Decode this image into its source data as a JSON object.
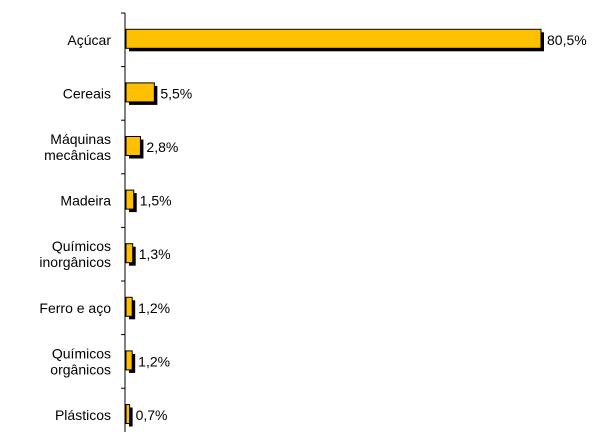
{
  "colors": {
    "bar_fill": "#FFC000",
    "bar_shadow": "#000000",
    "axis": "#000000",
    "text": "#000000"
  },
  "chart_data": {
    "type": "bar",
    "orientation": "horizontal",
    "categories": [
      [
        "Açúcar"
      ],
      [
        "Cereais"
      ],
      [
        "Máquinas",
        "mecânicas"
      ],
      [
        "Madeira"
      ],
      [
        "Químicos",
        "inorgânicos"
      ],
      [
        "Ferro e aço"
      ],
      [
        "Químicos",
        "orgânicos"
      ],
      [
        "Plásticos"
      ]
    ],
    "values": [
      80.5,
      5.5,
      2.8,
      1.5,
      1.3,
      1.2,
      1.2,
      0.7
    ],
    "value_labels": [
      "80,5%",
      "5,5%",
      "2,8%",
      "1,5%",
      "1,3%",
      "1,2%",
      "1,2%",
      "0,7%"
    ],
    "title": "",
    "xlabel": "",
    "ylabel": "",
    "xlim": [
      0,
      80.5
    ],
    "grid": false,
    "legend": "none"
  }
}
